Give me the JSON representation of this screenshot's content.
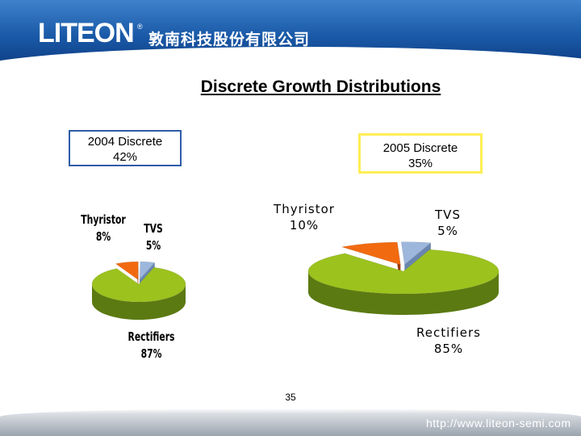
{
  "header": {
    "logo": "LITEON",
    "logo_mark": "®",
    "company_name": "敦南科技股份有限公司"
  },
  "title": "Discrete Growth Distributions",
  "footer": {
    "url": "http://www.liteon-semi.com",
    "page_number": "35"
  },
  "colors": {
    "header_blue": "#1a5aa8",
    "rectifiers": "#9cc21e",
    "rectifiers_side": "#5b7a12",
    "thyristor": "#f26a10",
    "thyristor_side": "#9a3a0a",
    "tvs": "#9db7dc",
    "tvs_side": "#6a86b0"
  },
  "chart_data": [
    {
      "type": "pie",
      "title_line1": "2004 Discrete",
      "title_line2": "42%",
      "slices": [
        {
          "label": "Thyristor",
          "value": 8,
          "display": "8%",
          "color": "#f26a10"
        },
        {
          "label": "TVS",
          "value": 5,
          "display": "5%",
          "color": "#9db7dc"
        },
        {
          "label": "Rectifiers",
          "value": 87,
          "display": "87%",
          "color": "#9cc21e"
        }
      ]
    },
    {
      "type": "pie",
      "title_line1": "2005 Discrete",
      "title_line2": "35%",
      "slices": [
        {
          "label": "Thyristor",
          "value": 10,
          "display": "10%",
          "color": "#f26a10"
        },
        {
          "label": "TVS",
          "value": 5,
          "display": "5%",
          "color": "#9db7dc"
        },
        {
          "label": "Rectifiers",
          "value": 85,
          "display": "85%",
          "color": "#9cc21e"
        }
      ]
    }
  ]
}
